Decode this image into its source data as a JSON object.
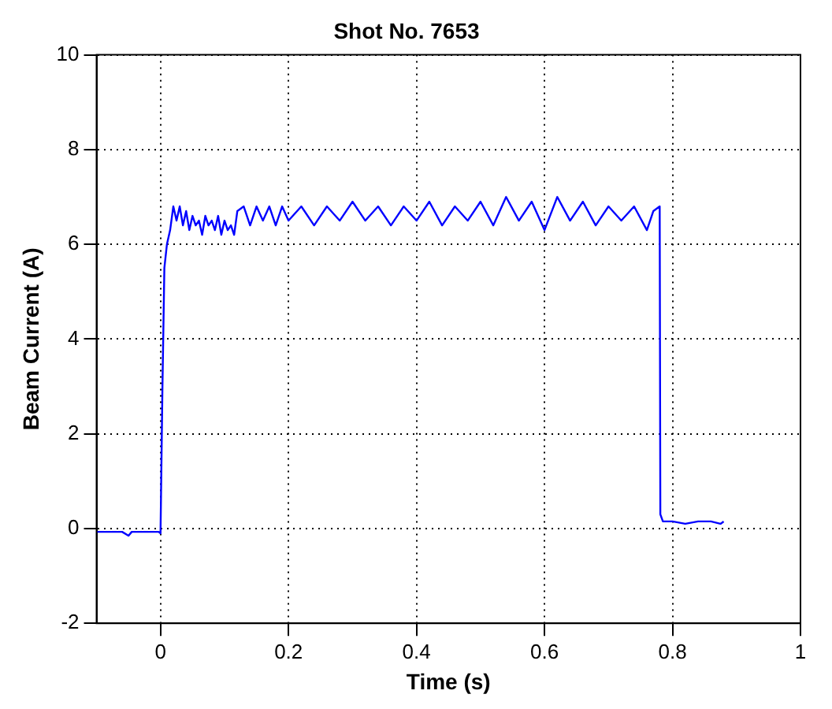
{
  "chart_data": {
    "type": "line",
    "title": "Shot No. 7653",
    "xlabel": "Time (s)",
    "ylabel": "Beam Current (A)",
    "xlim": [
      -0.1,
      1
    ],
    "xticks": [
      0,
      0.2,
      0.4,
      0.6,
      0.8,
      1
    ],
    "ylim": [
      -2,
      10
    ],
    "yticks": [
      -2,
      0,
      2,
      4,
      6,
      8,
      10
    ],
    "grid": true,
    "legend": false,
    "marker": "none",
    "line_style": "solid",
    "series": [
      {
        "color": "#0000ff",
        "x": [
          -0.1,
          -0.06,
          -0.05,
          -0.045,
          -0.03,
          -0.01,
          -0.003,
          0,
          0.003,
          0.006,
          0.01,
          0.015,
          0.02,
          0.025,
          0.03,
          0.035,
          0.04,
          0.045,
          0.05,
          0.055,
          0.06,
          0.065,
          0.07,
          0.075,
          0.08,
          0.085,
          0.09,
          0.095,
          0.1,
          0.105,
          0.11,
          0.115,
          0.12,
          0.13,
          0.14,
          0.15,
          0.16,
          0.17,
          0.18,
          0.19,
          0.2,
          0.22,
          0.24,
          0.26,
          0.28,
          0.3,
          0.32,
          0.34,
          0.36,
          0.38,
          0.4,
          0.42,
          0.44,
          0.46,
          0.48,
          0.5,
          0.52,
          0.54,
          0.56,
          0.58,
          0.6,
          0.62,
          0.64,
          0.66,
          0.68,
          0.7,
          0.72,
          0.74,
          0.76,
          0.77,
          0.78,
          0.781,
          0.785,
          0.8,
          0.82,
          0.84,
          0.86,
          0.875,
          0.88
        ],
        "values": [
          -0.07,
          -0.07,
          -0.15,
          -0.07,
          -0.07,
          -0.07,
          -0.07,
          -0.1,
          3,
          5.5,
          6.0,
          6.3,
          6.8,
          6.5,
          6.8,
          6.4,
          6.7,
          6.3,
          6.6,
          6.4,
          6.5,
          6.2,
          6.6,
          6.4,
          6.5,
          6.3,
          6.6,
          6.2,
          6.5,
          6.3,
          6.4,
          6.2,
          6.7,
          6.8,
          6.4,
          6.8,
          6.5,
          6.8,
          6.4,
          6.8,
          6.5,
          6.8,
          6.4,
          6.8,
          6.5,
          6.9,
          6.5,
          6.8,
          6.4,
          6.8,
          6.5,
          6.9,
          6.4,
          6.8,
          6.5,
          6.9,
          6.4,
          7.0,
          6.5,
          6.9,
          6.3,
          7.0,
          6.5,
          6.9,
          6.4,
          6.8,
          6.5,
          6.8,
          6.3,
          6.7,
          6.8,
          0.3,
          0.15,
          0.15,
          0.1,
          0.15,
          0.15,
          0.1,
          0.15
        ]
      }
    ]
  }
}
